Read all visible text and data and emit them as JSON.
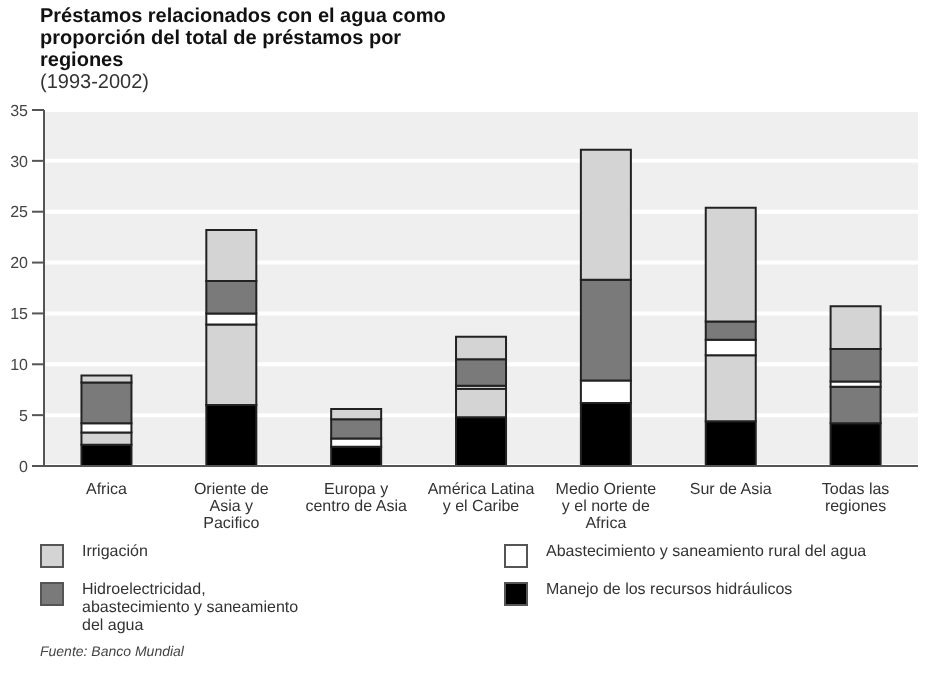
{
  "chart_data": {
    "type": "bar",
    "title": "Préstamos relacionados con el agua como proporción del total de préstamos por regiones",
    "subtitle": "(1993-2002)",
    "categories": [
      "Africa",
      "Oriente de Asia y Pacifico",
      "Europa y centro de Asia",
      "América Latina y el Caribe",
      "Medio Oriente y el norte de Africa",
      "Sur de Asia",
      "Todas las regiones"
    ],
    "series": [
      {
        "name": "Manejo de los recursos hidráulicos",
        "color": "#000000",
        "values": [
          2.1,
          6.0,
          1.9,
          4.8,
          6.2,
          4.4,
          4.2
        ]
      },
      {
        "color": "#d4d4d4",
        "values": [
          1.2,
          7.9,
          null,
          2.8,
          null,
          6.5,
          null
        ]
      },
      {
        "color": "#7a7a7a",
        "values": [
          null,
          null,
          null,
          null,
          null,
          null,
          3.6
        ]
      },
      {
        "name": "Abastecimiento y saneamiento rural del agua",
        "color": "#ffffff",
        "values": [
          0.9,
          1.1,
          0.8,
          0.3,
          2.2,
          1.5,
          0.5
        ]
      },
      {
        "name": "Hidroelectricidad, abastecimiento y saneamiento del agua",
        "color": "#7a7a7a",
        "values": [
          4.0,
          3.2,
          1.9,
          2.6,
          9.9,
          1.8,
          3.2
        ]
      },
      {
        "name": "Irrigación",
        "color": "#d4d4d4",
        "values": [
          0.7,
          5.0,
          1.0,
          2.2,
          12.8,
          11.2,
          4.2
        ]
      }
    ],
    "stacked": true,
    "ylim": [
      0,
      35
    ],
    "yticks": [
      0,
      5,
      10,
      15,
      20,
      25,
      30,
      35
    ],
    "grid": "y",
    "legend": "bottom",
    "annotations": [
      "Fuente: Banco Mundial"
    ]
  }
}
